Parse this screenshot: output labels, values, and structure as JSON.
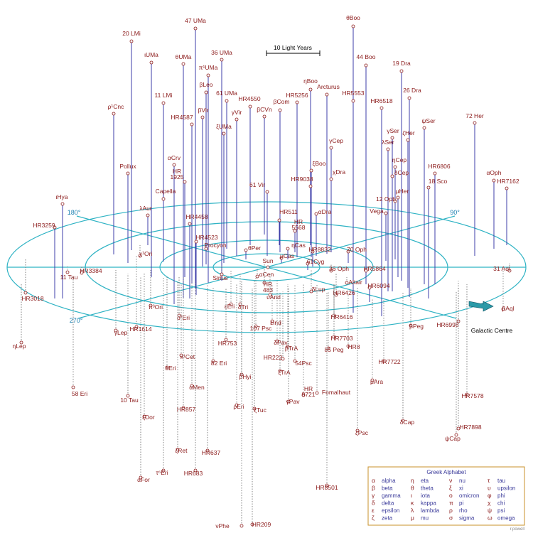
{
  "scale_label": "10 Light Years",
  "angles": [
    "180°",
    "90°",
    "270°"
  ],
  "galactic_centre": "Galactic Centre",
  "stars": [
    "θBoo",
    "47 UMa",
    "20 LMi",
    "ιUMa",
    "θUMa",
    "36 UMa",
    "44 Boo",
    "19 Dra",
    "π¹UMa",
    "ηBoo",
    "Arcturus",
    "βLeo",
    "26 Dra",
    "11 LMi",
    "61 UMa",
    "HR5553",
    "HR5256",
    "HR4550",
    "βCom",
    "ρ¹Cnc",
    "HR6518",
    "γVir",
    "βVir",
    "βCVn",
    "HR4587",
    "ψSer",
    "72 Her",
    "ξUMa",
    "γSer",
    "ζHer",
    "λSer",
    "γCep",
    "αCrv",
    "ηCep",
    "HR6806",
    [
      "HR",
      "1925"
    ],
    "ξBoo",
    "χDra",
    "δCep",
    "αOph",
    "Pollux",
    "18 Sco",
    "HR7162",
    "HR9038",
    "61 Vir",
    "Capella",
    "μHer",
    "12 Oph",
    "Vega",
    "ιHya",
    "λAur",
    "HR4458",
    "HR511",
    "αDra",
    "HR3259",
    [
      "HR",
      "5568"
    ],
    "HR4523",
    "Procyon",
    "ηCas",
    "θPer",
    "μCas",
    "HR8832",
    "70 Oph",
    "61Cyg",
    "Sun",
    "Sirius",
    "χ¹Ori",
    "36 Oph",
    "HR5864",
    "31 Aql",
    "11 Tau",
    "HR3384",
    "αCen",
    "Altair",
    "HR6094",
    "HR3018",
    [
      "HR",
      "483"
    ],
    "υAnd",
    "δLup",
    "HR6426",
    "εEri",
    "δTri",
    "π³Ori",
    "ο²Eri",
    "HR6416",
    "γLep",
    "HR1614",
    "107 Psc",
    "εInd",
    "βPeg",
    "βAql",
    "HR6998",
    "ηLep",
    "HR7703",
    "δPav",
    "βTrA",
    "HR753",
    "85 Peg",
    "HR8",
    "κ¹Cet",
    "82 Eri",
    "HR222",
    "54Psc",
    "HR7722",
    "δEri",
    "ζTrA",
    "βHyi",
    "μAra",
    "αMen",
    [
      "HR",
      "8721"
    ],
    "Fomalhaut",
    "58 Eri",
    "10 Tau",
    "γPav",
    "HR7578",
    "ρEri",
    "HR857",
    "ζDor",
    "ξTuc",
    "δCap",
    "HR7898",
    "ψCap",
    "ζPsc",
    "ζRet",
    "HR637",
    "τ⁶Eri",
    "HR683",
    "αFor",
    "HR8501",
    "νPhe",
    "HR209"
  ],
  "legend": {
    "title": "Greek Alphabet",
    "letters": [
      [
        "α",
        "alpha"
      ],
      [
        "β",
        "beta"
      ],
      [
        "γ",
        "gamma"
      ],
      [
        "δ",
        "delta"
      ],
      [
        "ε",
        "epsilon"
      ],
      [
        "ζ",
        "zeta"
      ],
      [
        "η",
        "eta"
      ],
      [
        "θ",
        "theta"
      ],
      [
        "ι",
        "iota"
      ],
      [
        "κ",
        "kappa"
      ],
      [
        "λ",
        "lambda"
      ],
      [
        "μ",
        "mu"
      ],
      [
        "ν",
        "nu"
      ],
      [
        "ξ",
        "xi"
      ],
      [
        "ο",
        "omicron"
      ],
      [
        "π",
        "pi"
      ],
      [
        "ρ",
        "rho"
      ],
      [
        "σ",
        "sigma"
      ],
      [
        "τ",
        "tau"
      ],
      [
        "υ",
        "upsilon"
      ],
      [
        "φ",
        "phi"
      ],
      [
        "χ",
        "chi"
      ],
      [
        "ψ",
        "psi"
      ],
      [
        "ω",
        "omega"
      ]
    ]
  },
  "credit": "r.powell"
}
